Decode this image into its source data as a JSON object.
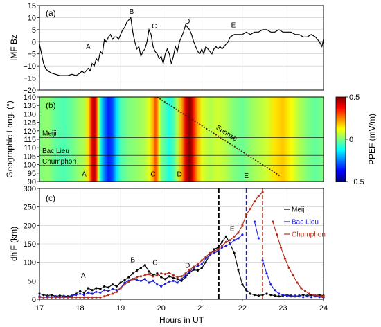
{
  "chart_data": [
    {
      "panel": "(a)",
      "type": "line",
      "ylabel": "IMF Bz",
      "xlim": [
        17,
        24
      ],
      "ylim": [
        -20,
        15
      ],
      "yticks": [
        -20,
        -15,
        -10,
        -5,
        0,
        5,
        10,
        15
      ],
      "ytick_labels": [
        "−20",
        "−15",
        "−10",
        "−5",
        "0",
        "5",
        "10",
        "15"
      ],
      "grid": true,
      "series": [
        {
          "color": "#000000",
          "x": [
            17.0,
            17.04,
            17.1,
            17.15,
            17.2,
            17.3,
            17.4,
            17.5,
            17.6,
            17.7,
            17.8,
            17.9,
            18.0,
            18.05,
            18.1,
            18.15,
            18.2,
            18.25,
            18.3,
            18.35,
            18.4,
            18.45,
            18.5,
            18.55,
            18.6,
            18.65,
            18.7,
            18.75,
            18.8,
            18.85,
            18.9,
            18.95,
            19.0,
            19.05,
            19.1,
            19.15,
            19.2,
            19.25,
            19.3,
            19.35,
            19.4,
            19.45,
            19.5,
            19.55,
            19.6,
            19.65,
            19.7,
            19.75,
            19.8,
            19.85,
            19.9,
            19.95,
            20.0,
            20.05,
            20.1,
            20.15,
            20.2,
            20.25,
            20.3,
            20.35,
            20.4,
            20.45,
            20.5,
            20.55,
            20.6,
            20.65,
            20.7,
            20.75,
            20.8,
            20.85,
            20.9,
            20.95,
            21.0,
            21.05,
            21.1,
            21.15,
            21.2,
            21.25,
            21.3,
            21.35,
            21.4,
            21.45,
            21.5,
            21.55,
            21.6,
            21.65,
            21.7,
            21.8,
            21.9,
            22.0,
            22.1,
            22.2,
            22.3,
            22.4,
            22.5,
            22.6,
            22.7,
            22.8,
            22.9,
            23.0,
            23.1,
            23.2,
            23.3,
            23.4,
            23.5,
            23.6,
            23.7,
            23.8,
            23.85,
            23.9,
            23.93,
            23.96,
            24.0
          ],
          "y": [
            -1,
            -4,
            -9,
            -11,
            -12,
            -13,
            -13.5,
            -14,
            -14,
            -14,
            -13.5,
            -14,
            -13,
            -12,
            -13,
            -12,
            -11,
            -12,
            -9,
            -10,
            -7,
            -8,
            -4,
            -5,
            1,
            0,
            2,
            3,
            1,
            2,
            2,
            1,
            3,
            5,
            6,
            8,
            9,
            10,
            4,
            0,
            -3,
            -2,
            -6,
            -4,
            -3,
            0,
            5,
            3,
            -2,
            -4,
            -5,
            -7,
            -6,
            -9,
            -5,
            -3,
            -5,
            -9,
            -6,
            -2,
            -4,
            0,
            2,
            4,
            7,
            6,
            5,
            3,
            0,
            -2,
            -4,
            -5,
            -3,
            -5,
            -2,
            -3,
            -4,
            -5,
            -3,
            -2,
            -3,
            -2,
            -3,
            -2,
            -1,
            0,
            2,
            3,
            3,
            3,
            4,
            3,
            4,
            4,
            5,
            5,
            4,
            4,
            5,
            4,
            4,
            4,
            3,
            3,
            2,
            2,
            3,
            2,
            1,
            0,
            -1,
            -2,
            1
          ]
        }
      ],
      "annotations": [
        {
          "text": "A",
          "x": 18.2,
          "y": -3
        },
        {
          "text": "B",
          "x": 19.27,
          "y": 11.5
        },
        {
          "text": "C",
          "x": 19.83,
          "y": 5.5
        },
        {
          "text": "D",
          "x": 20.65,
          "y": 7.5
        },
        {
          "text": "E",
          "x": 21.78,
          "y": 6
        }
      ]
    },
    {
      "panel": "(b)",
      "type": "heatmap",
      "ylabel": "Geographic Long. (°)",
      "xlim": [
        17,
        24
      ],
      "ylim": [
        90,
        140
      ],
      "yticks": [
        90,
        95,
        100,
        105,
        110,
        115,
        120,
        125,
        130,
        135,
        140
      ],
      "colorbar": {
        "label": "PPEF (mV/m)",
        "min": -0.5,
        "max": 0.5,
        "ticks": [
          0.5,
          0,
          -0.5
        ],
        "tick_labels": [
          "0.5",
          "0",
          "−0.5"
        ],
        "colors": [
          "#00007f",
          "#0000ff",
          "#007fff",
          "#00ffff",
          "#7fff7f",
          "#ffff00",
          "#ff7f00",
          "#ff0000",
          "#7f0000"
        ]
      },
      "columns": {
        "x": [
          17.0,
          17.2,
          17.4,
          17.6,
          17.8,
          18.0,
          18.1,
          18.2,
          18.3,
          18.35,
          18.4,
          18.45,
          18.5,
          18.6,
          18.7,
          18.8,
          18.9,
          19.0,
          19.2,
          19.4,
          19.6,
          19.7,
          19.8,
          19.85,
          19.9,
          19.95,
          20.0,
          20.1,
          20.2,
          20.3,
          20.4,
          20.5,
          20.6,
          20.65,
          20.7,
          20.75,
          20.8,
          20.9,
          21.0,
          21.2,
          21.4,
          21.6,
          21.8,
          22.0,
          22.2,
          22.4,
          22.6,
          22.8,
          23.0,
          23.2,
          23.4,
          23.6,
          23.8,
          24.0
        ],
        "value": [
          0.0,
          0.02,
          -0.03,
          -0.05,
          -0.02,
          0.03,
          0.05,
          0.15,
          0.4,
          0.45,
          0.35,
          0.1,
          -0.1,
          -0.25,
          -0.35,
          -0.3,
          -0.15,
          -0.05,
          0.0,
          0.02,
          0.05,
          0.1,
          0.2,
          0.3,
          0.25,
          0.1,
          0.0,
          -0.05,
          -0.1,
          -0.05,
          0.05,
          0.2,
          0.4,
          0.45,
          0.5,
          0.45,
          0.35,
          0.2,
          0.1,
          0.05,
          0.08,
          0.05,
          0.0,
          -0.02,
          0.02,
          0.05,
          0.08,
          0.15,
          0.18,
          0.12,
          0.05,
          0.0,
          -0.03,
          0.0
        ]
      },
      "reference_lines": [
        {
          "label": "Meiji",
          "y": 116
        },
        {
          "label": "Bac Lieu",
          "y": 105.5
        },
        {
          "label": "Chumphon",
          "y": 99.5
        }
      ],
      "sunrise_line": {
        "label": "Sunrise",
        "x": [
          19.9,
          22.95
        ],
        "y": [
          140,
          93
        ]
      },
      "annotations": [
        {
          "text": "A",
          "x": 18.1,
          "y": 93
        },
        {
          "text": "C",
          "x": 19.8,
          "y": 93
        },
        {
          "text": "D",
          "x": 20.45,
          "y": 93
        },
        {
          "text": "E",
          "x": 22.1,
          "y": 92
        }
      ]
    },
    {
      "panel": "(c)",
      "type": "line",
      "xlabel": "Hours in UT",
      "ylabel": "dh'F (km)",
      "xlim": [
        17,
        24
      ],
      "ylim": [
        0,
        300
      ],
      "xticks": [
        17,
        18,
        19,
        20,
        21,
        22,
        23,
        24
      ],
      "yticks": [
        0,
        50,
        100,
        150,
        200,
        250,
        300
      ],
      "grid": true,
      "legend": "right",
      "vertical_lines": [
        {
          "x": 21.42,
          "color": "#000000"
        },
        {
          "x": 22.1,
          "color": "#1f1fd6"
        },
        {
          "x": 22.5,
          "color": "#b03020"
        }
      ],
      "series": [
        {
          "name": "Meiji",
          "color": "#000000",
          "segments": [
            {
              "x": [
                17.0,
                17.1,
                17.2,
                17.3,
                17.4,
                17.5,
                17.6,
                17.7,
                17.8,
                17.9,
                18.0,
                18.1,
                18.2,
                18.3,
                18.4,
                18.5,
                18.6,
                18.7,
                18.8,
                18.9,
                19.0,
                19.1,
                19.2,
                19.3,
                19.4,
                19.5,
                19.6,
                19.7,
                19.8,
                19.9,
                20.0,
                20.1,
                20.2,
                20.3,
                20.4,
                20.5,
                20.6,
                20.7,
                20.8,
                20.9,
                21.0,
                21.1,
                21.2,
                21.3,
                21.4,
                21.5,
                21.6,
                21.7,
                21.8,
                21.9,
                22.0,
                22.1,
                22.2,
                22.3,
                22.4,
                22.5,
                22.6,
                22.7,
                22.8,
                22.9,
                23.0,
                23.1,
                23.2,
                23.3,
                23.4,
                23.5,
                23.6,
                23.7,
                23.8,
                23.9,
                24.0
              ],
              "y": [
                15,
                12,
                10,
                12,
                8,
                10,
                9,
                8,
                10,
                15,
                22,
                18,
                30,
                25,
                30,
                28,
                35,
                32,
                40,
                35,
                45,
                52,
                60,
                70,
                78,
                85,
                92,
                75,
                65,
                70,
                60,
                55,
                62,
                58,
                55,
                50,
                60,
                72,
                80,
                78,
                85,
                100,
                120,
                135,
                140,
                155,
                170,
                150,
                125,
                80,
                40,
                25,
                15,
                12,
                10,
                12,
                15,
                12,
                10,
                8,
                10,
                12,
                10,
                8,
                10,
                12,
                10,
                12,
                10,
                12,
                10
              ]
            }
          ]
        },
        {
          "name": "Bac Lieu",
          "color": "#1f1fd6",
          "segments": [
            {
              "x": [
                17.0,
                17.1,
                17.2,
                17.3,
                17.4,
                17.5,
                17.6,
                17.7,
                17.8,
                17.9,
                18.0,
                18.1,
                18.2,
                18.3,
                18.4,
                18.5,
                18.6,
                18.7,
                18.8,
                18.9,
                19.0,
                19.1,
                19.2,
                19.3,
                19.4,
                19.5,
                19.6,
                19.7,
                19.8,
                19.9,
                20.0,
                20.1,
                20.2,
                20.3,
                20.4,
                20.5,
                20.6,
                20.7,
                20.8,
                20.9,
                21.0,
                21.1,
                21.2,
                21.3,
                21.4,
                21.5,
                21.6,
                21.7,
                21.8,
                21.9,
                22.0
              ],
              "y": [
                8,
                5,
                8,
                6,
                8,
                5,
                8,
                6,
                10,
                12,
                15,
                12,
                18,
                15,
                20,
                18,
                25,
                22,
                28,
                25,
                30,
                45,
                50,
                55,
                52,
                50,
                55,
                45,
                50,
                40,
                35,
                42,
                48,
                50,
                45,
                55,
                65,
                75,
                85,
                90,
                95,
                110,
                120,
                125,
                130,
                140,
                145,
                150,
                160,
                165,
                175
              ]
            },
            {
              "x": [
                22.3,
                22.4
              ],
              "y": [
                210,
                165
              ]
            },
            {
              "x": [
                22.5,
                22.6,
                22.7,
                22.8,
                22.9,
                23.0,
                23.1,
                23.2,
                23.3,
                23.4,
                23.5,
                23.6,
                23.7,
                23.8,
                23.9,
                24.0
              ],
              "y": [
                105,
                70,
                40,
                25,
                15,
                12,
                10,
                8,
                10,
                8,
                6,
                8,
                6,
                8,
                6,
                5
              ]
            }
          ]
        },
        {
          "name": "Chumphon",
          "color": "#b03020",
          "segments": [
            {
              "x": [
                17.0,
                17.1,
                17.2,
                17.3,
                17.4,
                17.5,
                17.6,
                17.7,
                17.8,
                17.9,
                18.0,
                18.1,
                18.2,
                18.3,
                18.4,
                18.5,
                18.6,
                18.7,
                18.8,
                18.9,
                19.0,
                19.1,
                19.2,
                19.3,
                19.4,
                19.5,
                19.6,
                19.7,
                19.8,
                19.9,
                20.0,
                20.1,
                20.2,
                20.3,
                20.4,
                20.5,
                20.6,
                20.7,
                20.8,
                20.9,
                21.0,
                21.1,
                21.2,
                21.3,
                21.4,
                21.5,
                21.6,
                21.7,
                21.8,
                21.9,
                22.0,
                22.1,
                22.2,
                22.3,
                22.4,
                22.5
              ],
              "y": [
                5,
                5,
                5,
                5,
                5,
                5,
                5,
                5,
                5,
                5,
                5,
                5,
                5,
                5,
                5,
                5,
                8,
                12,
                15,
                20,
                30,
                40,
                48,
                55,
                60,
                62,
                65,
                68,
                62,
                65,
                70,
                68,
                72,
                65,
                60,
                62,
                70,
                80,
                88,
                95,
                105,
                115,
                125,
                130,
                135,
                145,
                155,
                160,
                170,
                180,
                200,
                230,
                245,
                265,
                280,
                290
              ]
            },
            {
              "x": [
                22.75,
                22.85,
                22.95,
                23.05,
                23.15,
                23.25,
                23.35,
                23.45,
                23.55,
                23.65,
                23.75,
                23.85,
                23.95,
                24.0
              ],
              "y": [
                210,
                175,
                140,
                110,
                85,
                65,
                45,
                30,
                22,
                15,
                12,
                10,
                8,
                8
              ]
            }
          ]
        }
      ],
      "annotations": [
        {
          "text": "A",
          "x": 18.08,
          "y": 58
        },
        {
          "text": "B",
          "x": 19.3,
          "y": 100
        },
        {
          "text": "C",
          "x": 19.85,
          "y": 93
        },
        {
          "text": "D",
          "x": 20.65,
          "y": 85
        },
        {
          "text": "E",
          "x": 21.75,
          "y": 185
        }
      ]
    }
  ]
}
